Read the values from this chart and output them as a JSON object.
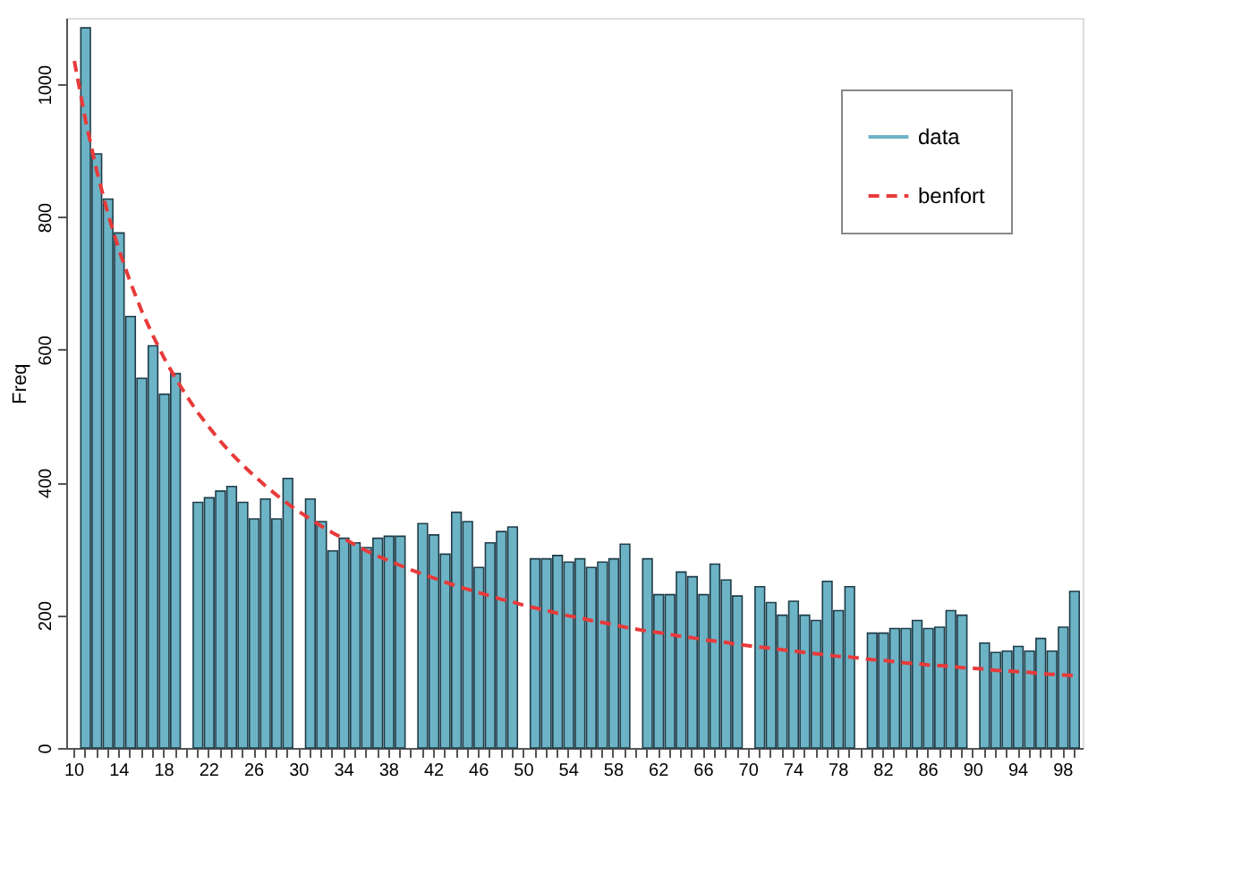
{
  "chart_data": {
    "type": "bar",
    "ylabel": "Freq",
    "categories": [
      "10",
      null,
      null,
      null,
      "14",
      null,
      null,
      null,
      "18",
      null,
      null,
      null,
      "22",
      null,
      null,
      null,
      "26",
      null,
      null,
      null,
      "30",
      null,
      null,
      null,
      "34",
      null,
      null,
      null,
      "38",
      null,
      null,
      null,
      "42",
      null,
      null,
      null,
      "46",
      null,
      null,
      null,
      "50",
      null,
      null,
      null,
      "54",
      null,
      null,
      null,
      "58",
      null,
      null,
      null,
      "62",
      null,
      null,
      null,
      "66",
      null,
      null,
      null,
      "70",
      null,
      null,
      null,
      "74",
      null,
      null,
      null,
      "78",
      null,
      null,
      null,
      "82",
      null,
      null,
      null,
      "86",
      null,
      null,
      null,
      "90",
      null,
      null,
      null,
      "94",
      null,
      null,
      null,
      "98",
      null
    ],
    "series": [
      {
        "name": "data",
        "color": "#6db3c6",
        "values": [
          null,
          1085,
          895,
          827,
          776,
          650,
          557,
          606,
          533,
          564,
          null,
          370,
          377,
          387,
          394,
          370,
          345,
          375,
          345,
          406,
          null,
          375,
          341,
          297,
          316,
          309,
          302,
          316,
          319,
          319,
          null,
          338,
          321,
          292,
          355,
          341,
          272,
          309,
          326,
          333,
          null,
          285,
          285,
          290,
          280,
          285,
          272,
          280,
          285,
          307,
          null,
          285,
          231,
          231,
          265,
          258,
          231,
          277,
          253,
          229,
          null,
          243,
          219,
          200,
          221,
          200,
          192,
          251,
          207,
          243,
          null,
          173,
          173,
          180,
          180,
          192,
          180,
          182,
          207,
          200,
          null,
          158,
          144,
          146,
          153,
          146,
          165,
          146,
          182,
          236
        ]
      },
      {
        "name": "benfort",
        "type": "line",
        "color": "#e83a3a",
        "line_style": "dashed",
        "marker": "none",
        "values": [
          1035,
          945,
          869,
          804,
          749,
          701,
          658,
          621,
          587,
          557,
          530,
          505,
          483,
          462,
          443,
          426,
          410,
          395,
          381,
          368,
          356,
          345,
          334,
          324,
          315,
          306,
          297,
          289,
          282,
          275,
          268,
          262,
          256,
          250,
          244,
          239,
          234,
          229,
          224,
          220,
          215,
          211,
          207,
          203,
          199,
          196,
          192,
          189,
          186,
          182,
          179,
          176,
          174,
          171,
          168,
          166,
          163,
          161,
          159,
          156,
          154,
          152,
          150,
          148,
          146,
          144,
          142,
          140,
          138,
          137,
          135,
          133,
          132,
          130,
          128,
          127,
          125,
          124,
          123,
          121,
          120,
          119,
          117,
          116,
          115,
          114,
          112,
          111,
          110,
          109
        ]
      }
    ],
    "ylim": [
      0,
      1100
    ],
    "yticks": [
      0,
      200,
      400,
      600,
      800,
      1000
    ],
    "grid": false,
    "legend": "top right"
  }
}
